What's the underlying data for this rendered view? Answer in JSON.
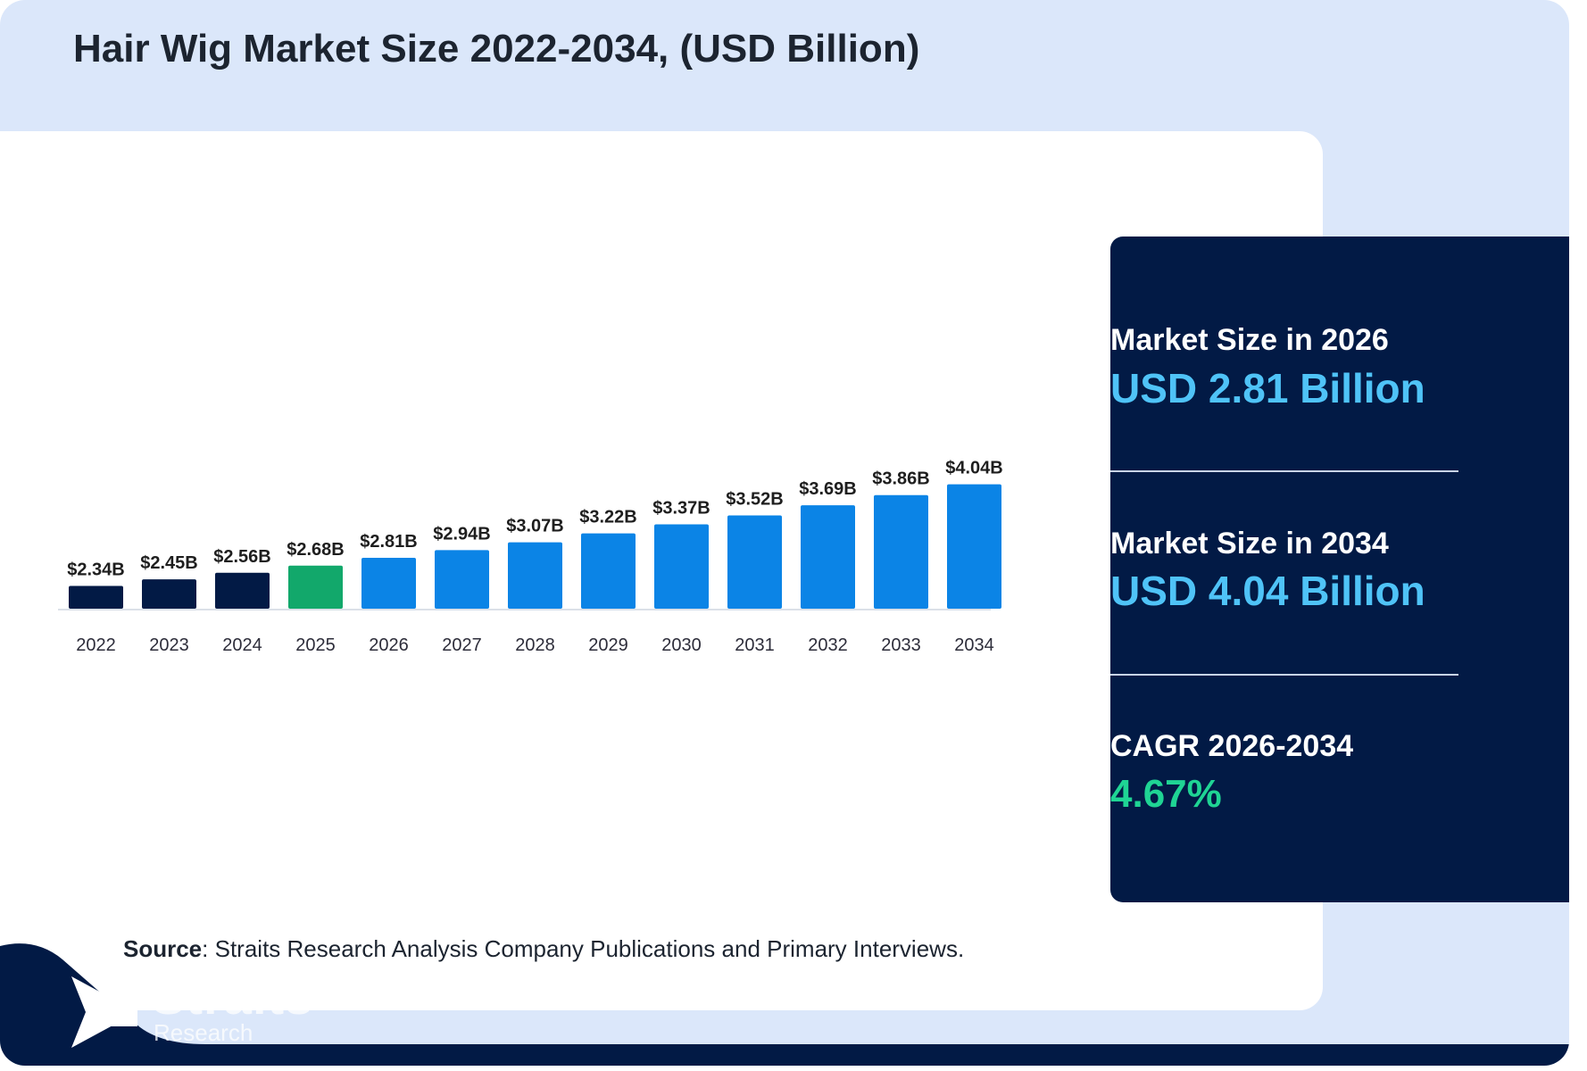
{
  "title": "Hair Wig Market Size 2022-2034, (USD Billion)",
  "colors": {
    "historic": "#021a45",
    "base_year": "#12a86b",
    "forecast": "#0b84e6",
    "panel": "#021a45",
    "panel_value": "#4fc3f7",
    "cagr_value": "#1fd494"
  },
  "chart_data": {
    "type": "bar",
    "title": "Hair Wig Market Size 2022-2034, (USD Billion)",
    "categories": [
      "2022",
      "2023",
      "2024",
      "2025",
      "2026",
      "2027",
      "2028",
      "2029",
      "2030",
      "2031",
      "2032",
      "2033",
      "2034"
    ],
    "values": [
      2.34,
      2.45,
      2.56,
      2.68,
      2.81,
      2.94,
      3.07,
      3.22,
      3.37,
      3.52,
      3.69,
      3.86,
      4.04
    ],
    "value_labels": [
      "$2.34B",
      "$2.45B",
      "$2.56B",
      "$2.68B",
      "$2.81B",
      "$2.94B",
      "$3.07B",
      "$3.22B",
      "$3.37B",
      "$3.52B",
      "$3.69B",
      "$3.86B",
      "$4.04B"
    ],
    "bar_colors": [
      "#021a45",
      "#021a45",
      "#021a45",
      "#12a86b",
      "#0b84e6",
      "#0b84e6",
      "#0b84e6",
      "#0b84e6",
      "#0b84e6",
      "#0b84e6",
      "#0b84e6",
      "#0b84e6",
      "#0b84e6"
    ],
    "xlabel": "",
    "ylabel": "",
    "grid": false
  },
  "stats": {
    "market_2026_label": "Market Size in 2026",
    "market_2026_value": "USD 2.81 Billion",
    "market_2034_label": "Market Size in 2034",
    "market_2034_value": "USD 4.04 Billion",
    "cagr_label": "CAGR 2026-2034",
    "cagr_value": "4.67%"
  },
  "source": {
    "label": "Source",
    "text": ": Straits Research Analysis Company Publications and Primary Interviews."
  },
  "logo": {
    "name": "Straits",
    "subtitle": "Research"
  }
}
